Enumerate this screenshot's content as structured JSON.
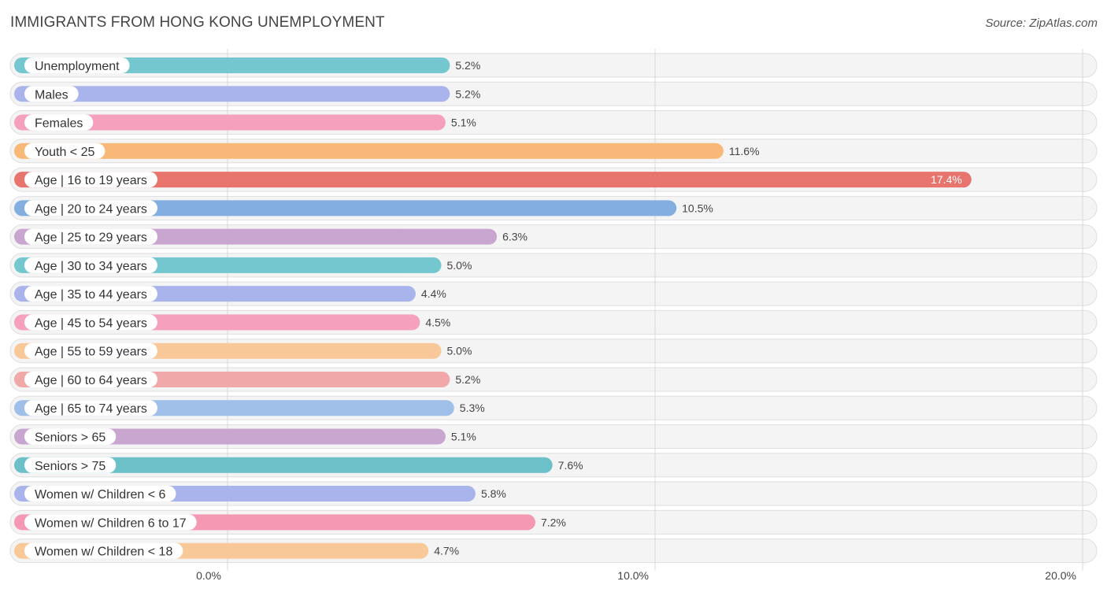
{
  "header": {
    "title": "IMMIGRANTS FROM HONG KONG UNEMPLOYMENT",
    "source": "Source: ZipAtlas.com"
  },
  "chart_data": {
    "type": "bar",
    "orientation": "horizontal",
    "title": "IMMIGRANTS FROM HONG KONG UNEMPLOYMENT",
    "xlabel": "",
    "ylabel": "",
    "xlim": [
      0,
      20
    ],
    "ticks": [
      {
        "value": 0,
        "label": "0.0%"
      },
      {
        "value": 10,
        "label": "10.0%"
      },
      {
        "value": 20,
        "label": "20.0%"
      }
    ],
    "grid": true,
    "categories": [
      "Unemployment",
      "Males",
      "Females",
      "Youth < 25",
      "Age | 16 to 19 years",
      "Age | 20 to 24 years",
      "Age | 25 to 29 years",
      "Age | 30 to 34 years",
      "Age | 35 to 44 years",
      "Age | 45 to 54 years",
      "Age | 55 to 59 years",
      "Age | 60 to 64 years",
      "Age | 65 to 74 years",
      "Seniors > 65",
      "Seniors > 75",
      "Women w/ Children < 6",
      "Women w/ Children 6 to 17",
      "Women w/ Children < 18"
    ],
    "values": [
      5.2,
      5.2,
      5.1,
      11.6,
      17.4,
      10.5,
      6.3,
      5.0,
      4.4,
      4.5,
      5.0,
      5.2,
      5.3,
      5.1,
      7.6,
      5.8,
      7.2,
      4.7
    ],
    "value_labels": [
      "5.2%",
      "5.2%",
      "5.1%",
      "11.6%",
      "17.4%",
      "10.5%",
      "6.3%",
      "5.0%",
      "4.4%",
      "4.5%",
      "5.0%",
      "5.2%",
      "5.3%",
      "5.1%",
      "7.6%",
      "5.8%",
      "7.2%",
      "4.7%"
    ],
    "colors": [
      "#74c7cf",
      "#aab4ec",
      "#f5a0bc",
      "#f8b878",
      "#e8746e",
      "#82aee0",
      "#c9a6cf",
      "#74c7cf",
      "#aab4ec",
      "#f5a0bc",
      "#f9c898",
      "#f0a8a8",
      "#9fbfe8",
      "#c9a6cf",
      "#6cc0c8",
      "#aab4ec",
      "#f598b4",
      "#f9c898"
    ]
  }
}
